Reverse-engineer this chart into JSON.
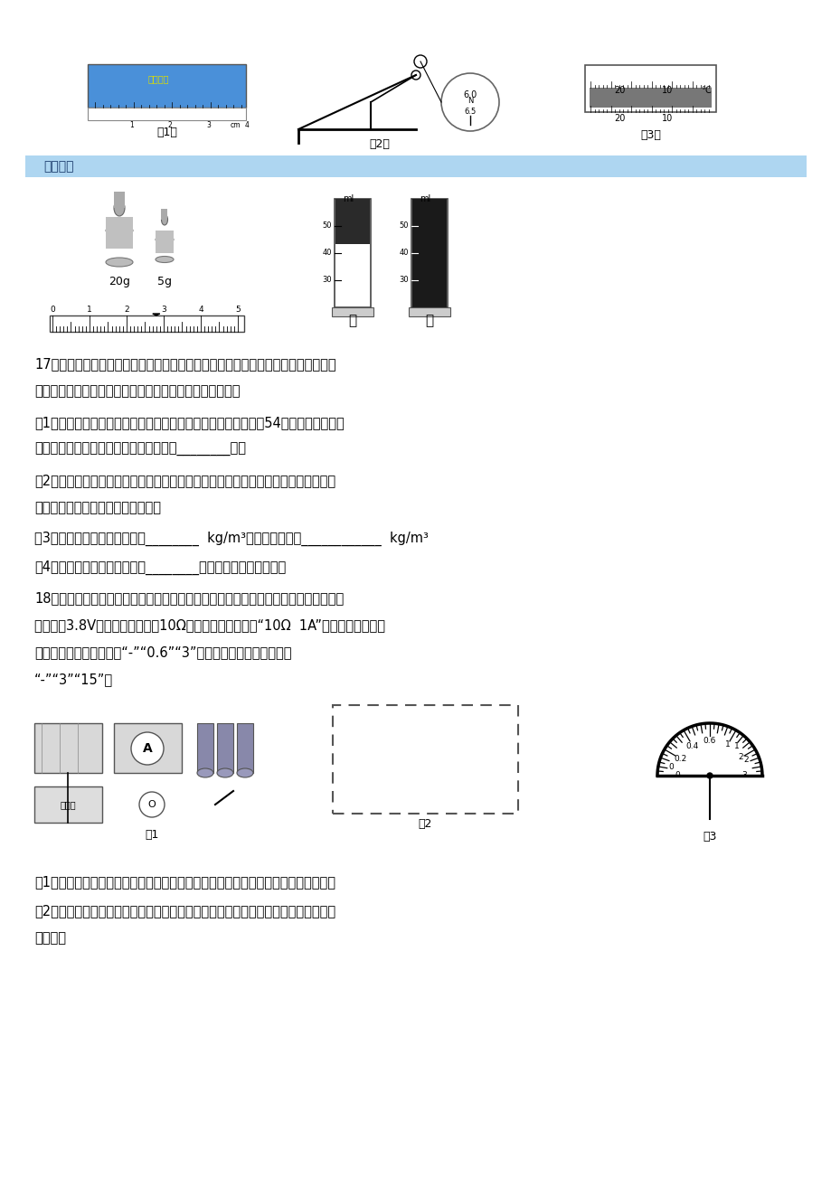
{
  "bg_color": "#ffffff",
  "page_width": 9.2,
  "page_height": 13.02,
  "answer_banner_color": "#aed6f1",
  "answer_banner_text": "显示解析",
  "answer_banner_text_color": "#1a3a6b",
  "question17_title": "17．小雨在自家厨房发现了两包糖，一包是颗粒极小的细砂糖，一包是颗粒较大的冰",
  "question17_line2": "糖．小雨想测出这两种糖的密度，于是他进行了如下操作：",
  "question17_q1a": "（1）分别取适量的细砂糖和冰糖用天平称量，称得细砂糖质量为54克，称冰糖时天平",
  "question17_q1b": "中砂码和游码如图所示，则冰糖的质量为________克．",
  "question17_q2a": "（2）将称得的细砂糖全部倒入量筒，摇平后如图甲所示，再将称得的冰糖全部埋入量",
  "question17_q2b": "筒中的细砂糖，摇平后如图乙所示．",
  "question17_q3": "（3）计算得出细砂糖的密度为________  kg/m³，冰糖的密度为____________  kg/m³",
  "question17_q4": "（4）你认为小雨测得的密度中________糖的密度误差相对较大．",
  "question18_title": "18．如图是测定小灯泡额定功率的实物连接图，其中电源是三节新的干电池，灯泡的额",
  "question18_line2": "定电压是3.8V，其灯丝电阵约为10Ω，滑动变阵器上标有“10Ω  1A”的字样．（说明：",
  "question18_line3": "电流表接线柱从左到右为“-”“0.6”“3”；电压表接线柱从左到右为",
  "question18_line4": "“-”“3”“15”）",
  "question18_q1": "（1）请你用笔画线代替导线将电路中未连接的部分连好，使它成为完整的实验电路．",
  "question18_q2a": "（2）小刚合理地连接好电路，并按正确的顺序操作，但闭合开关后灯不亮，聪明的小",
  "question18_q2b": "刚猜想："
}
